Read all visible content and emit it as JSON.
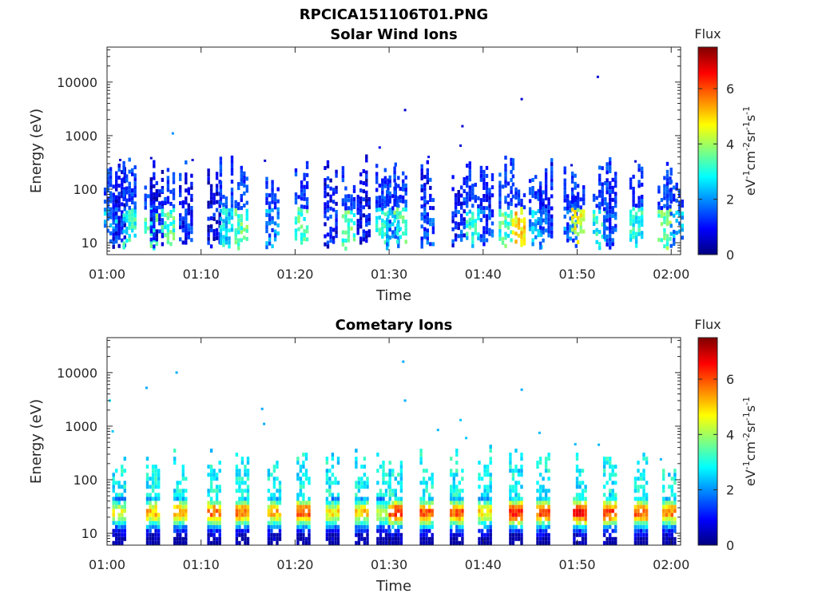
{
  "figure": {
    "title": "RPCICA151106T01.PNG",
    "background": "#ffffff"
  },
  "chart_data": [
    {
      "type": "heatmap",
      "title": "Solar Wind Ions",
      "xlabel": "Time",
      "ylabel": "Energy (eV)",
      "x_ticks": [
        "01:00",
        "01:10",
        "01:20",
        "01:30",
        "01:40",
        "01:50",
        "02:00"
      ],
      "x_range_minutes": [
        0,
        61
      ],
      "y_scale": "log",
      "y_ticks": [
        "10",
        "100",
        "1000",
        "10000"
      ],
      "y_range": [
        6,
        45000
      ],
      "colorbar": {
        "title": "Flux",
        "label": "eV-1cm-2sr-1s-1",
        "label_base": "eV",
        "ticks": [
          "0",
          "2",
          "4",
          "6"
        ],
        "range": [
          0,
          7.5
        ],
        "colormap": "jet"
      },
      "bursts": [
        {
          "t": 0.4,
          "v": 2.2
        },
        {
          "t": 1.3,
          "v": 1.0
        },
        {
          "t": 2.4,
          "v": 3.0
        },
        {
          "t": 4.7,
          "v": 3.3
        },
        {
          "t": 5.3,
          "v": 0.9
        },
        {
          "t": 6.5,
          "v": 3.3
        },
        {
          "t": 8.4,
          "v": 1.2
        },
        {
          "t": 11.4,
          "v": 0.8
        },
        {
          "t": 12.7,
          "v": 2.6
        },
        {
          "t": 14.3,
          "v": 3.4
        },
        {
          "t": 17.6,
          "v": 1.9
        },
        {
          "t": 20.7,
          "v": 3.3
        },
        {
          "t": 23.8,
          "v": 1.0
        },
        {
          "t": 25.7,
          "v": 3.4
        },
        {
          "t": 27.3,
          "v": 0.9
        },
        {
          "t": 29.3,
          "v": 2.8
        },
        {
          "t": 30.4,
          "v": 2.0
        },
        {
          "t": 31.2,
          "v": 3.3
        },
        {
          "t": 34.1,
          "v": 1.3
        },
        {
          "t": 37.4,
          "v": 1.2
        },
        {
          "t": 38.9,
          "v": 2.9
        },
        {
          "t": 40.4,
          "v": 1.4
        },
        {
          "t": 42.4,
          "v": 3.2
        },
        {
          "t": 43.8,
          "v": 4.9
        },
        {
          "t": 45.6,
          "v": 2.2
        },
        {
          "t": 46.7,
          "v": 1.4
        },
        {
          "t": 49.3,
          "v": 1.7
        },
        {
          "t": 50.1,
          "v": 4.4
        },
        {
          "t": 52.4,
          "v": 3.0
        },
        {
          "t": 53.5,
          "v": 1.5
        },
        {
          "t": 56.3,
          "v": 2.9
        },
        {
          "t": 59.3,
          "v": 3.6
        },
        {
          "t": 60.6,
          "v": 2.1
        }
      ],
      "scatter": [
        {
          "t": 7.0,
          "e": 1100,
          "v": 2.0
        },
        {
          "t": 31.7,
          "e": 3000,
          "v": 0.6
        },
        {
          "t": 44.1,
          "e": 4800,
          "v": 0.6
        },
        {
          "t": 52.2,
          "e": 12500,
          "v": 0.6
        },
        {
          "t": 37.8,
          "e": 1500,
          "v": 0.6
        },
        {
          "t": 37.6,
          "e": 650,
          "v": 0.6
        },
        {
          "t": 29.0,
          "e": 600,
          "v": 0.8
        },
        {
          "t": 34.2,
          "e": 400,
          "v": 0.8
        },
        {
          "t": 1.4,
          "e": 350,
          "v": 0.6
        },
        {
          "t": 4.7,
          "e": 380,
          "v": 0.6
        },
        {
          "t": 9.1,
          "e": 350,
          "v": 0.6
        },
        {
          "t": 16.8,
          "e": 340,
          "v": 0.6
        },
        {
          "t": 56.2,
          "e": 330,
          "v": 0.6
        },
        {
          "t": 49.4,
          "e": 280,
          "v": 0.6
        }
      ]
    },
    {
      "type": "heatmap",
      "title": "Cometary Ions",
      "xlabel": "Time",
      "ylabel": "Energy (eV)",
      "x_ticks": [
        "01:00",
        "01:10",
        "01:20",
        "01:30",
        "01:40",
        "01:50",
        "02:00"
      ],
      "x_range_minutes": [
        0,
        61
      ],
      "y_scale": "log",
      "y_ticks": [
        "10",
        "100",
        "1000",
        "10000"
      ],
      "y_range": [
        6,
        45000
      ],
      "colorbar": {
        "title": "Flux",
        "label": "eV-1cm-2sr-1s-1",
        "label_base": "eV",
        "ticks": [
          "0",
          "2",
          "4",
          "6"
        ],
        "range": [
          0,
          7.5
        ],
        "colormap": "jet"
      },
      "bursts": [
        {
          "t": 1.3,
          "v": 4.6
        },
        {
          "t": 4.9,
          "v": 5.2
        },
        {
          "t": 7.8,
          "v": 5.3
        },
        {
          "t": 11.4,
          "v": 5.8
        },
        {
          "t": 14.4,
          "v": 5.7
        },
        {
          "t": 17.8,
          "v": 5.2
        },
        {
          "t": 20.9,
          "v": 6.1
        },
        {
          "t": 24.0,
          "v": 4.8
        },
        {
          "t": 27.1,
          "v": 5.0
        },
        {
          "t": 29.4,
          "v": 4.2
        },
        {
          "t": 30.7,
          "v": 6.3
        },
        {
          "t": 34.0,
          "v": 6.0
        },
        {
          "t": 37.2,
          "v": 5.9
        },
        {
          "t": 40.2,
          "v": 4.9
        },
        {
          "t": 43.5,
          "v": 6.4
        },
        {
          "t": 46.4,
          "v": 6.0
        },
        {
          "t": 50.3,
          "v": 6.6
        },
        {
          "t": 53.5,
          "v": 6.1
        },
        {
          "t": 56.8,
          "v": 5.9
        },
        {
          "t": 59.8,
          "v": 5.6
        }
      ],
      "scatter": [
        {
          "t": 0.3,
          "e": 3000,
          "v": 2.6
        },
        {
          "t": 0.6,
          "e": 800,
          "v": 2.4
        },
        {
          "t": 4.2,
          "e": 5200,
          "v": 2.2
        },
        {
          "t": 7.4,
          "e": 10000,
          "v": 2.2
        },
        {
          "t": 16.5,
          "e": 2100,
          "v": 2.2
        },
        {
          "t": 16.7,
          "e": 1100,
          "v": 2.2
        },
        {
          "t": 31.5,
          "e": 16000,
          "v": 2.2
        },
        {
          "t": 31.7,
          "e": 3000,
          "v": 2.2
        },
        {
          "t": 44.1,
          "e": 4800,
          "v": 2.2
        },
        {
          "t": 37.6,
          "e": 1300,
          "v": 2.4
        },
        {
          "t": 35.2,
          "e": 850,
          "v": 2.3
        },
        {
          "t": 38.2,
          "e": 600,
          "v": 2.4
        },
        {
          "t": 46.0,
          "e": 750,
          "v": 2.3
        },
        {
          "t": 49.8,
          "e": 460,
          "v": 2.3
        },
        {
          "t": 52.3,
          "e": 450,
          "v": 2.3
        },
        {
          "t": 58.9,
          "e": 240,
          "v": 2.3
        }
      ]
    }
  ]
}
